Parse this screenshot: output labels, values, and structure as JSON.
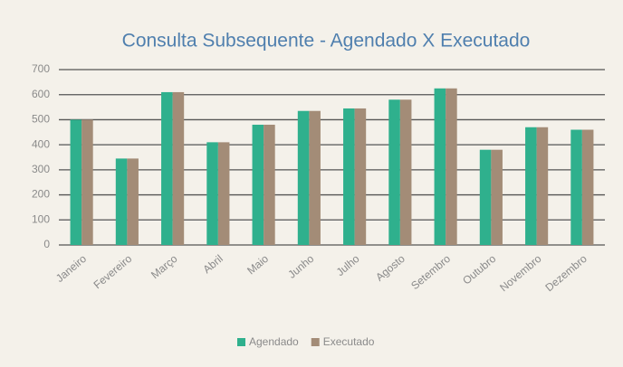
{
  "chart_data": {
    "type": "bar",
    "title": "Consulta Subsequente - Agendado X Executado",
    "categories": [
      "Janeiro",
      "Fevereiro",
      "Março",
      "Abril",
      "Maio",
      "Junho",
      "Julho",
      "Agosto",
      "Setembro",
      "Outubro",
      "Novembro",
      "Dezembro"
    ],
    "series": [
      {
        "name": "Agendado",
        "color": "#2fb08d",
        "values": [
          500,
          345,
          610,
          410,
          480,
          535,
          545,
          580,
          625,
          380,
          470,
          460
        ]
      },
      {
        "name": "Executado",
        "color": "#a38c77",
        "values": [
          500,
          345,
          610,
          410,
          480,
          535,
          545,
          580,
          625,
          380,
          470,
          460
        ]
      }
    ],
    "ylim": [
      0,
      700
    ],
    "yticks": [
      0,
      100,
      200,
      300,
      400,
      500,
      600,
      700
    ],
    "grid": true,
    "legend": "bottom"
  }
}
